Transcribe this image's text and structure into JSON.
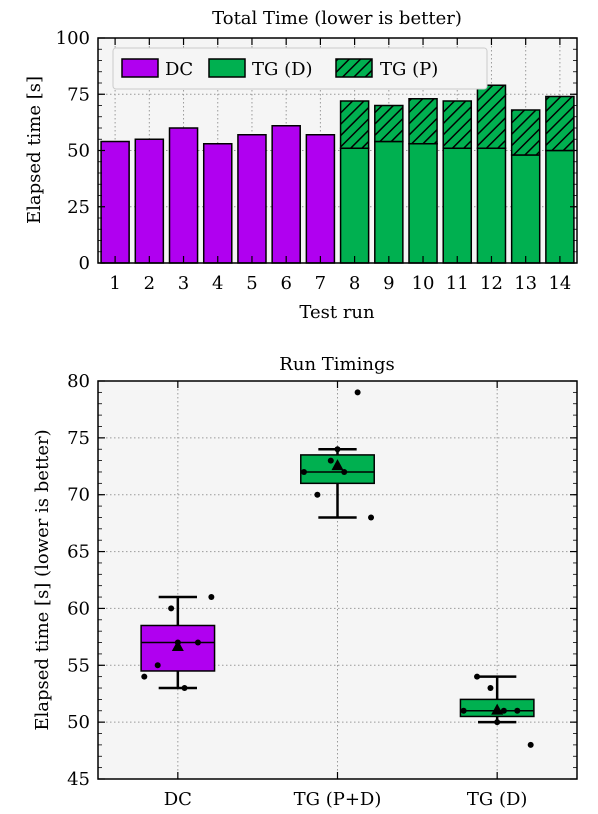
{
  "colors": {
    "dc": "#b000f0",
    "tg": "#00b050",
    "plot_bg": "#f5f5f5",
    "grid": "#9a9a9a"
  },
  "chart_data": [
    {
      "type": "bar",
      "stacked": true,
      "title": "Total Time (lower is better)",
      "xlabel": "Test run",
      "ylabel": "Elapsed time [s]",
      "ylim": [
        0,
        100
      ],
      "yticks": [
        0,
        25,
        50,
        75,
        100
      ],
      "grid": true,
      "legend_position": "top-left",
      "categories": [
        "1",
        "2",
        "3",
        "4",
        "5",
        "6",
        "7",
        "8",
        "9",
        "10",
        "11",
        "12",
        "13",
        "14"
      ],
      "series": [
        {
          "name": "DC",
          "color": "#b000f0",
          "hatch": false,
          "values": [
            54,
            55,
            60,
            53,
            57,
            61,
            57,
            null,
            null,
            null,
            null,
            null,
            null,
            null
          ]
        },
        {
          "name": "TG (D)",
          "color": "#00b050",
          "hatch": false,
          "values": [
            null,
            null,
            null,
            null,
            null,
            null,
            null,
            51,
            54,
            53,
            51,
            51,
            48,
            50
          ]
        },
        {
          "name": "TG (P)",
          "color": "#00b050",
          "hatch": true,
          "values": [
            null,
            null,
            null,
            null,
            null,
            null,
            null,
            21,
            16,
            20,
            21,
            28,
            20,
            24
          ]
        }
      ]
    },
    {
      "type": "box",
      "title": "Run Timings",
      "xlabel": "",
      "ylabel": "Elapsed time [s] (lower is better)",
      "ylim": [
        45,
        80
      ],
      "yticks": [
        45,
        50,
        55,
        60,
        65,
        70,
        75,
        80
      ],
      "grid": true,
      "categories": [
        "DC",
        "TG (P+D)",
        "TG (D)"
      ],
      "boxes": [
        {
          "name": "DC",
          "color": "#b000f0",
          "min": 53,
          "q1": 54.5,
          "median": 57,
          "q3": 58.5,
          "max": 61,
          "mean": 56.7,
          "points": [
            54,
            55,
            60,
            53,
            57,
            61,
            57
          ]
        },
        {
          "name": "TG (P+D)",
          "color": "#00b050",
          "min": 68,
          "q1": 71,
          "median": 72,
          "q3": 73.5,
          "max": 74,
          "mean": 72.6,
          "points": [
            72,
            70,
            73,
            72,
            79,
            68,
            74
          ]
        },
        {
          "name": "TG (D)",
          "color": "#00b050",
          "min": 50,
          "q1": 50.5,
          "median": 51,
          "q3": 52,
          "max": 54,
          "mean": 51.1,
          "points": [
            51,
            54,
            53,
            51,
            51,
            48,
            50
          ]
        }
      ]
    }
  ]
}
